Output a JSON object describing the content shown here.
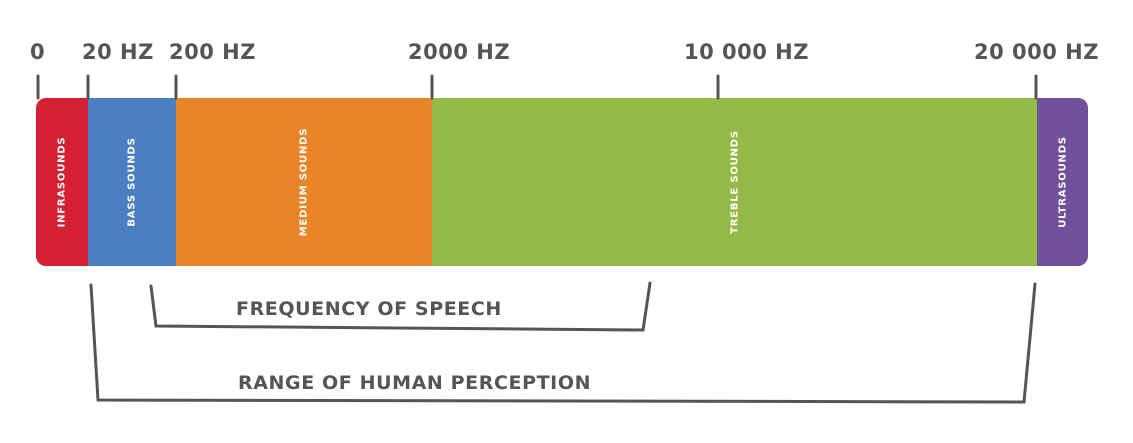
{
  "ticks": {
    "t0": "0",
    "t20": "20 HZ",
    "t200": "200 HZ",
    "t2000": "2000 HZ",
    "t10000": "10 000 HZ",
    "t20000": "20 000 HZ"
  },
  "bands": {
    "infra": {
      "label": "INFRASOUNDS",
      "color": "#d42030"
    },
    "bass": {
      "label": "BASS SOUNDS",
      "color": "#4a7fc4"
    },
    "medium": {
      "label": "MEDIUM SOUNDS",
      "color": "#e98428"
    },
    "treble": {
      "label": "TREBLE SOUNDS",
      "color": "#93ba47"
    },
    "ultra": {
      "label": "ULTRASOUNDS",
      "color": "#70509a"
    }
  },
  "brackets": {
    "speech": "FREQUENCY OF SPEECH",
    "human": "RANGE OF HUMAN PERCEPTION"
  },
  "colors": {
    "text": "#555555",
    "line": "#555555"
  }
}
